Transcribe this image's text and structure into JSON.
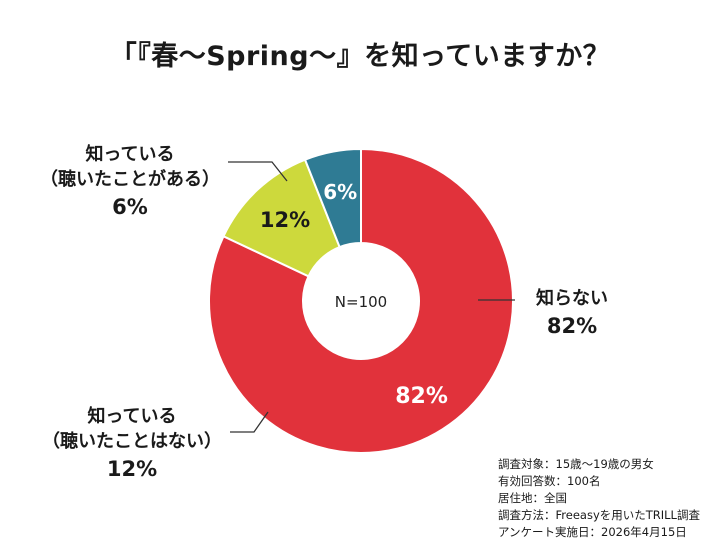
{
  "chart_data": {
    "type": "pie",
    "title": "「『春〜Spring〜』を知っていますか？",
    "center_label": "N=100",
    "slices": [
      {
        "name": "知らない",
        "value": 82,
        "label": "82%",
        "color": "#e1323b"
      },
      {
        "name": "知っている（聴いたことはない）",
        "value": 12,
        "label": "12%",
        "color": "#cdd93c"
      },
      {
        "name": "知っている（聴いたことがある）",
        "value": 6,
        "label": "6%",
        "color": "#2f7b94"
      }
    ]
  },
  "callouts": {
    "unknown": {
      "line1": "知らない",
      "pct": "82%"
    },
    "known_not_heard": {
      "line1": "知っている",
      "line2": "（聴いたことはない）",
      "pct": "12%"
    },
    "known_heard": {
      "line1": "知っている",
      "line2": "（聴いたことがある）",
      "pct": "6%"
    }
  },
  "survey_info": [
    "調査対象：15歳〜19歳の男女",
    "有効回答数：100名",
    "居住地：全国",
    "調査方法：Freeasyを用いたTRILL調査",
    "アンケート実施日：2026年4月15日"
  ],
  "colors": {
    "leader_line": "#333333",
    "background": "#ffffff"
  }
}
